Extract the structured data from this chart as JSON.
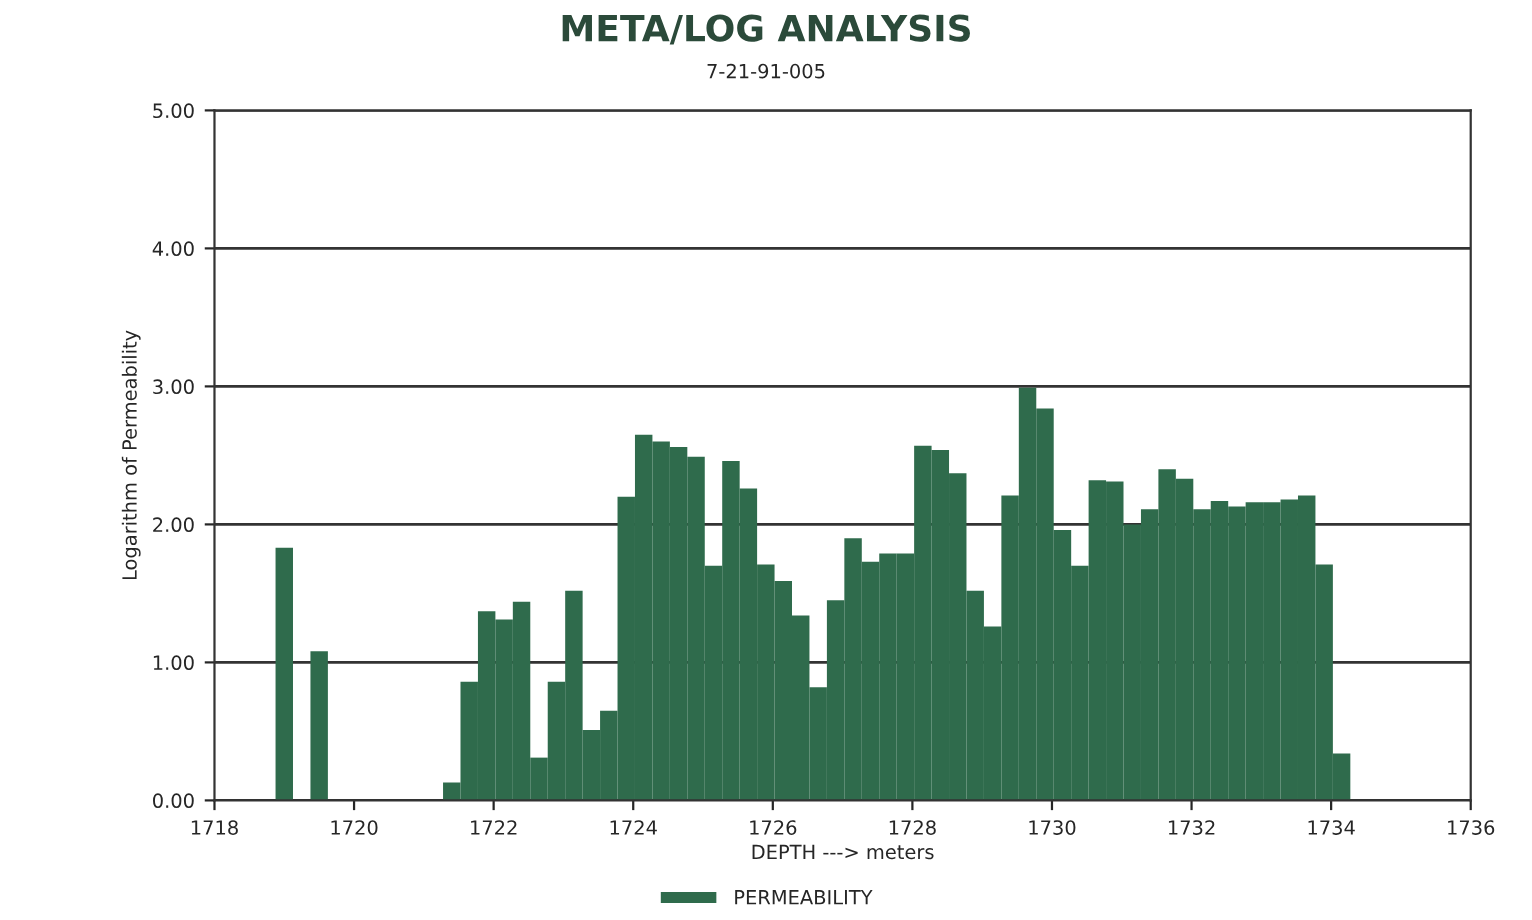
{
  "chart_data": {
    "type": "bar",
    "title": "META/LOG ANALYSIS",
    "subtitle": "7-21-91-005",
    "xlabel": "DEPTH ---> meters",
    "ylabel": "Logarithm of Permeability",
    "x": [
      1719.0,
      1719.5,
      1721.4,
      1721.65,
      1721.9,
      1722.15,
      1722.4,
      1722.65,
      1722.9,
      1723.15,
      1723.4,
      1723.65,
      1723.9,
      1724.15,
      1724.4,
      1724.65,
      1724.9,
      1725.15,
      1725.4,
      1725.65,
      1725.9,
      1726.15,
      1726.4,
      1726.65,
      1726.9,
      1727.15,
      1727.4,
      1727.65,
      1727.9,
      1728.15,
      1728.4,
      1728.65,
      1728.9,
      1729.15,
      1729.4,
      1729.65,
      1729.9,
      1730.15,
      1730.4,
      1730.65,
      1730.9,
      1731.15,
      1731.4,
      1731.65,
      1731.9,
      1732.15,
      1732.4,
      1732.65,
      1732.9,
      1733.15,
      1733.4,
      1733.65,
      1733.9,
      1734.15
    ],
    "series": [
      {
        "name": "PERMEABILITY",
        "color": "#2f6b4c",
        "values": [
          1.83,
          1.08,
          0.13,
          0.86,
          1.37,
          1.31,
          1.44,
          0.31,
          0.86,
          1.52,
          0.51,
          0.65,
          2.2,
          2.65,
          2.6,
          2.56,
          2.49,
          1.7,
          2.46,
          2.26,
          1.71,
          1.59,
          1.34,
          0.82,
          1.45,
          1.9,
          1.73,
          1.79,
          1.79,
          2.57,
          2.54,
          2.37,
          1.52,
          1.26,
          2.21,
          2.99,
          2.84,
          1.96,
          1.7,
          2.32,
          2.31,
          2.0,
          2.11,
          2.4,
          2.33,
          2.11,
          2.17,
          2.13,
          2.16,
          2.16,
          2.18,
          2.21,
          1.71,
          0.34
        ]
      }
    ],
    "xlim": [
      1718,
      1736
    ],
    "xticks": [
      1718,
      1720,
      1722,
      1724,
      1726,
      1728,
      1730,
      1732,
      1734,
      1736
    ],
    "ylim": [
      0,
      5
    ],
    "yticks": [
      {
        "value": 0,
        "label": "0.00"
      },
      {
        "value": 1,
        "label": "1.00"
      },
      {
        "value": 2,
        "label": "2.00"
      },
      {
        "value": 3,
        "label": "3.00"
      },
      {
        "value": 4,
        "label": "4.00"
      },
      {
        "value": 5,
        "label": "5.00"
      }
    ],
    "grid": "y",
    "legend": "bottom"
  }
}
